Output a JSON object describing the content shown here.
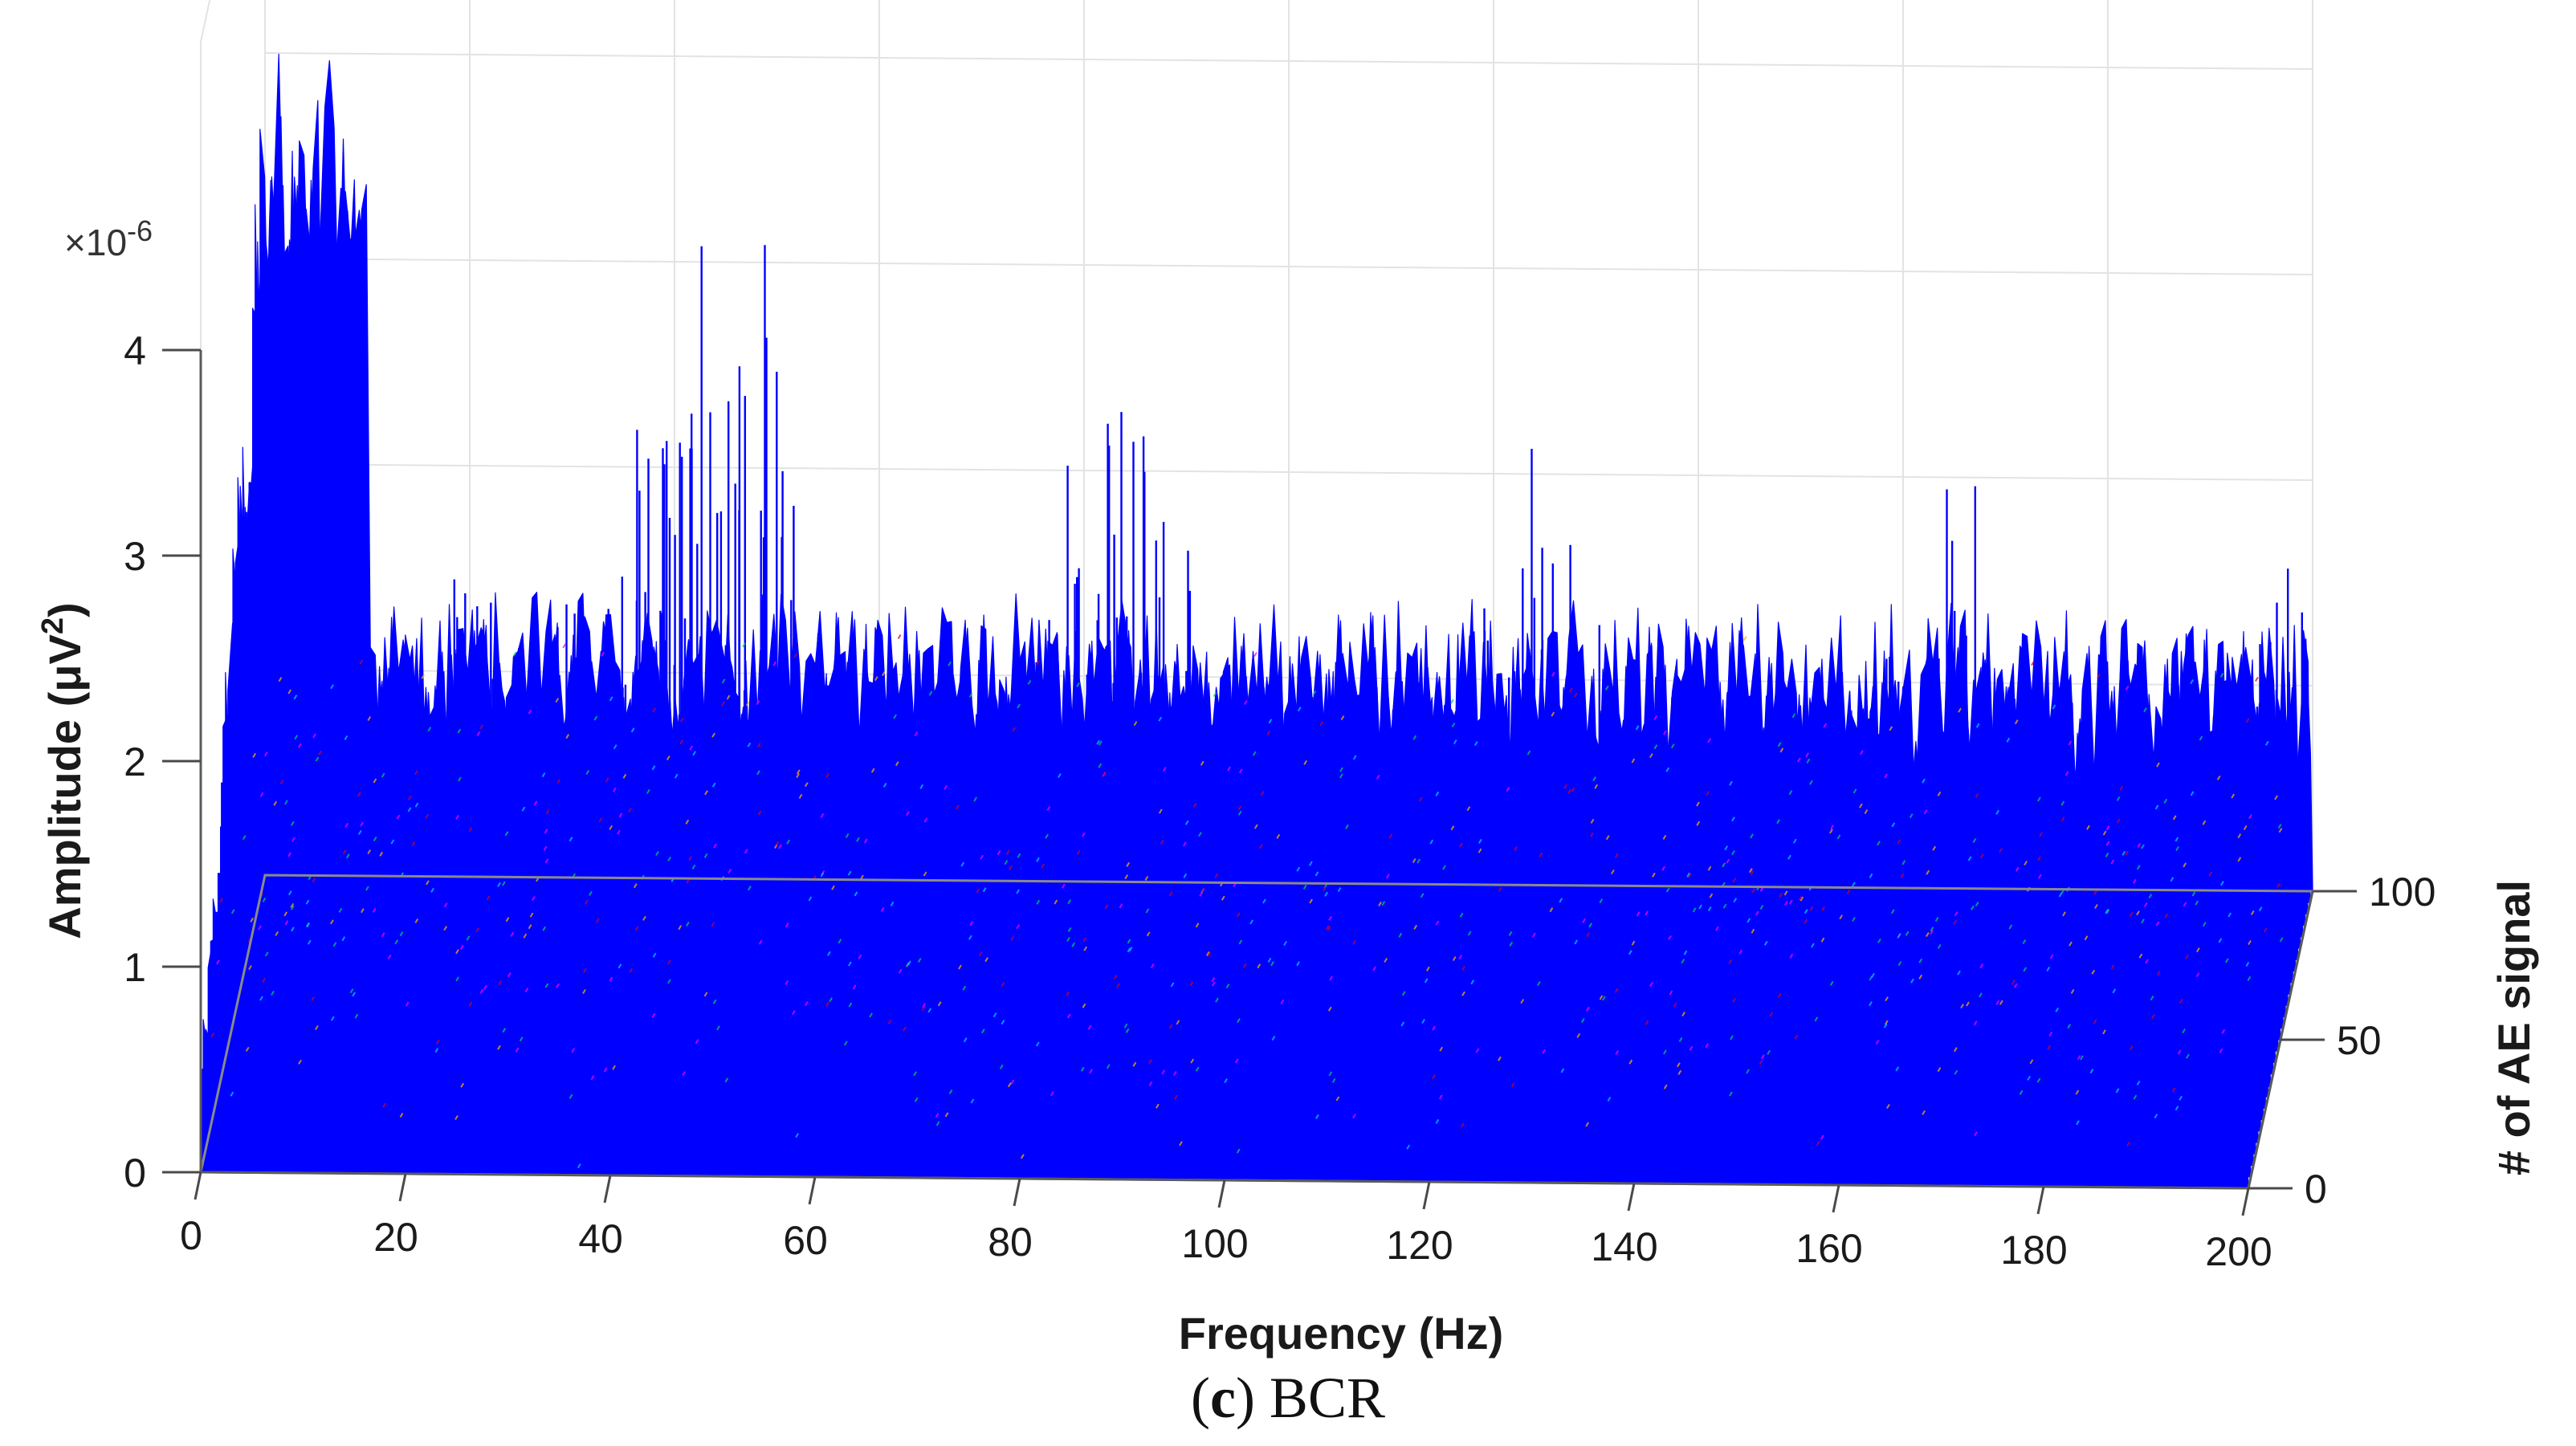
{
  "caption": {
    "open": "(",
    "letter": "c",
    "close": ")",
    "text": " BCR"
  },
  "colors": {
    "series": "#0000ff",
    "noise": [
      "#ff00ff",
      "#00cc66",
      "#ffaa00",
      "#00ccff",
      "#cc0033"
    ]
  },
  "chart_data": {
    "type": "waterfall-3d",
    "xlabel": "Frequency (Hz)",
    "ylabel": "# of AE signal",
    "zlabel_main": "Amplitude (μV",
    "zlabel_sup": "2",
    "zlabel_close": ")",
    "z_exponent_prefix": "×10",
    "z_exponent_sup": "-6",
    "x_ticks": [
      "0",
      "20",
      "40",
      "60",
      "80",
      "100",
      "120",
      "140",
      "160",
      "180",
      "200"
    ],
    "y_ticks": [
      "0",
      "50",
      "100"
    ],
    "z_ticks": [
      "0",
      "1",
      "2",
      "3",
      "4"
    ],
    "xlim": [
      0,
      200
    ],
    "ylim": [
      0,
      100
    ],
    "zlim": [
      0,
      4
    ],
    "grid": true,
    "baseline_amplitude": 1.4,
    "envelope_peaks": [
      {
        "freq": 4,
        "amp": 4.2
      },
      {
        "freq": 8,
        "amp": 3.8
      },
      {
        "freq": 22,
        "amp": 2.2
      },
      {
        "freq": 33,
        "amp": 2.1
      },
      {
        "freq": 41,
        "amp": 3.1
      },
      {
        "freq": 46,
        "amp": 3.9
      },
      {
        "freq": 49,
        "amp": 3.3
      },
      {
        "freq": 82,
        "amp": 2.7
      },
      {
        "freq": 86,
        "amp": 2.9
      },
      {
        "freq": 90,
        "amp": 2.5
      },
      {
        "freq": 124,
        "amp": 2.5
      },
      {
        "freq": 128,
        "amp": 2.5
      },
      {
        "freq": 163,
        "amp": 2.1
      },
      {
        "freq": 167,
        "amp": 2.4
      },
      {
        "freq": 198,
        "amp": 1.9
      }
    ]
  }
}
